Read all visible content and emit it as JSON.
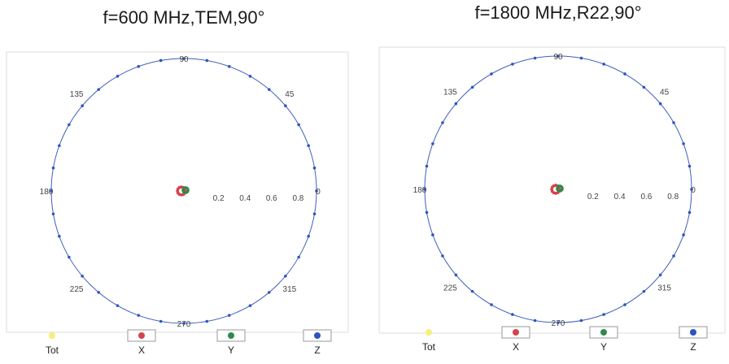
{
  "colors": {
    "ring": "#3f5fb8",
    "tot": "#f4f07a",
    "x": "#d8424c",
    "y": "#2f8a4a",
    "z": "#2b55c0",
    "tick": "#444444"
  },
  "chart_data": [
    {
      "type": "scatter",
      "title": "f=600 MHz,TEM,90°",
      "coordinate_system": "polar",
      "radial_range": [
        0,
        1
      ],
      "radial_ticks": [
        "0.2",
        "0.4",
        "0.6",
        "0.8"
      ],
      "angle_labels": [
        "90",
        "45",
        "0",
        "315",
        "270",
        "225",
        "180",
        "135"
      ],
      "series": [
        {
          "name": "Tot",
          "color": "#f4f07a",
          "r": []
        },
        {
          "name": "X",
          "color": "#d8424c",
          "r": [
            0.03,
            0.03,
            0.03,
            0.03,
            0.03,
            0.03,
            0.03,
            0.03,
            0.03,
            0.03,
            0.03,
            0.03
          ]
        },
        {
          "name": "Y",
          "color": "#2f8a4a",
          "r": [
            0.02,
            0.02,
            0.02,
            0.02,
            0.02,
            0.02,
            0.02,
            0.02,
            0.02,
            0.02,
            0.02,
            0.02
          ]
        },
        {
          "name": "Z",
          "color": "#2b55c0",
          "r": [
            1,
            1,
            1,
            1,
            1,
            1,
            1,
            1,
            1,
            1,
            1,
            1,
            1,
            1,
            1,
            1,
            1,
            1,
            1,
            1,
            1,
            1,
            1,
            1,
            1,
            1,
            1,
            1,
            1,
            1,
            1,
            1,
            1,
            1,
            1,
            1
          ]
        }
      ]
    },
    {
      "type": "scatter",
      "title": "f=1800 MHz,R22,90°",
      "coordinate_system": "polar",
      "radial_range": [
        0,
        1
      ],
      "radial_ticks": [
        "0.2",
        "0.4",
        "0.6",
        "0.8"
      ],
      "angle_labels": [
        "90",
        "45",
        "0",
        "315",
        "270",
        "225",
        "180",
        "135"
      ],
      "series": [
        {
          "name": "Tot",
          "color": "#f4f07a",
          "r": []
        },
        {
          "name": "X",
          "color": "#d8424c",
          "r": [
            0.03,
            0.03,
            0.03,
            0.03,
            0.03,
            0.03,
            0.03,
            0.03,
            0.03,
            0.03,
            0.03,
            0.03
          ]
        },
        {
          "name": "Y",
          "color": "#2f8a4a",
          "r": [
            0.02,
            0.02,
            0.02,
            0.02,
            0.02,
            0.02,
            0.02,
            0.02,
            0.02,
            0.02,
            0.02,
            0.02
          ]
        },
        {
          "name": "Z",
          "color": "#2b55c0",
          "r": [
            1,
            1,
            1,
            1,
            1,
            1,
            1,
            1,
            1,
            1,
            1,
            1,
            1,
            1,
            1,
            1,
            1,
            1,
            1,
            1,
            1,
            1,
            1,
            1,
            1,
            1,
            1,
            1,
            1,
            1,
            1,
            1,
            1,
            1,
            1,
            1
          ]
        }
      ]
    }
  ]
}
